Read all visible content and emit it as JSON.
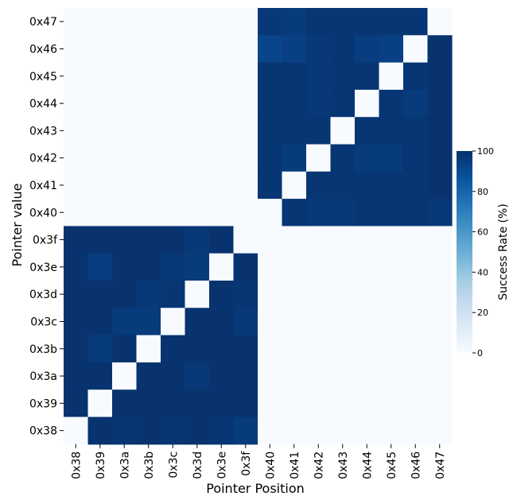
{
  "chart_data": {
    "type": "heatmap",
    "title": "",
    "xlabel": "Pointer Position",
    "ylabel": "Pointer value",
    "x_categories": [
      "0x38",
      "0x39",
      "0x3a",
      "0x3b",
      "0x3c",
      "0x3d",
      "0x3e",
      "0x3f",
      "0x40",
      "0x41",
      "0x42",
      "0x43",
      "0x44",
      "0x45",
      "0x46",
      "0x47"
    ],
    "y_categories_top_to_bottom": [
      "0x47",
      "0x46",
      "0x45",
      "0x44",
      "0x43",
      "0x42",
      "0x41",
      "0x40",
      "0x3f",
      "0x3e",
      "0x3d",
      "0x3c",
      "0x3b",
      "0x3a",
      "0x39",
      "0x38"
    ],
    "values_rows_top_to_bottom": [
      [
        0,
        0,
        0,
        0,
        0,
        0,
        0,
        0,
        97,
        96,
        98,
        98,
        98,
        98,
        98,
        0
      ],
      [
        0,
        0,
        0,
        0,
        0,
        0,
        0,
        0,
        92,
        94,
        97,
        98,
        95,
        94,
        0,
        99
      ],
      [
        0,
        0,
        0,
        0,
        0,
        0,
        0,
        0,
        98,
        98,
        97,
        98,
        98,
        0,
        98,
        99
      ],
      [
        0,
        0,
        0,
        0,
        0,
        0,
        0,
        0,
        98,
        98,
        97,
        98,
        0,
        98,
        96,
        99
      ],
      [
        0,
        0,
        0,
        0,
        0,
        0,
        0,
        0,
        98,
        98,
        98,
        0,
        98,
        98,
        98,
        99
      ],
      [
        0,
        0,
        0,
        0,
        0,
        0,
        0,
        0,
        98,
        96,
        0,
        98,
        96,
        96,
        98,
        99
      ],
      [
        0,
        0,
        0,
        0,
        0,
        0,
        0,
        0,
        98,
        0,
        98,
        98,
        98,
        98,
        98,
        99
      ],
      [
        0,
        0,
        0,
        0,
        0,
        0,
        0,
        0,
        0,
        98,
        97,
        97,
        98,
        98,
        98,
        97
      ],
      [
        99,
        99,
        99,
        99,
        99,
        97,
        99,
        0,
        0,
        0,
        0,
        0,
        0,
        0,
        0,
        0
      ],
      [
        99,
        95,
        99,
        99,
        97,
        96,
        0,
        99,
        0,
        0,
        0,
        0,
        0,
        0,
        0,
        0
      ],
      [
        99,
        99,
        99,
        97,
        98,
        0,
        99,
        98,
        0,
        0,
        0,
        0,
        0,
        0,
        0,
        0
      ],
      [
        99,
        99,
        96,
        96,
        0,
        99,
        99,
        97,
        0,
        0,
        0,
        0,
        0,
        0,
        0,
        0
      ],
      [
        99,
        96,
        99,
        0,
        99,
        99,
        99,
        99,
        0,
        0,
        0,
        0,
        0,
        0,
        0,
        0
      ],
      [
        99,
        99,
        0,
        99,
        99,
        97,
        99,
        99,
        0,
        0,
        0,
        0,
        0,
        0,
        0,
        0
      ],
      [
        99,
        0,
        99,
        99,
        99,
        99,
        99,
        99,
        0,
        0,
        0,
        0,
        0,
        0,
        0,
        0
      ],
      [
        0,
        99,
        98,
        99,
        98,
        99,
        98,
        96,
        0,
        0,
        0,
        0,
        0,
        0,
        0,
        0
      ]
    ],
    "colorbar": {
      "label": "Success Rate (%)",
      "min": 0,
      "max": 100,
      "ticks": [
        "0",
        "20",
        "40",
        "60",
        "80",
        "100"
      ]
    },
    "colormap": [
      "#f7fbff",
      "#deebf7",
      "#c6dbef",
      "#9ecae1",
      "#6baed6",
      "#4292c6",
      "#2171b5",
      "#08519c",
      "#08306b"
    ]
  }
}
